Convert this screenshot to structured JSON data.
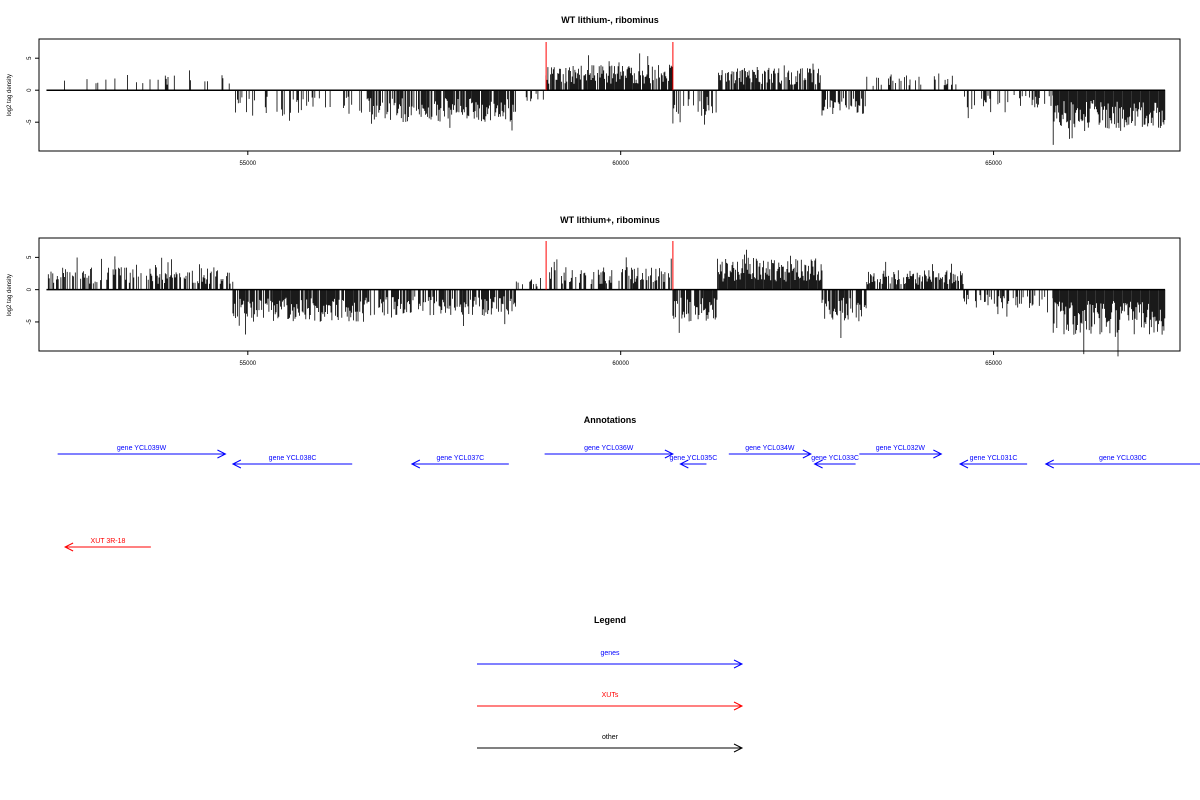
{
  "colors": {
    "bars": "#000000",
    "marker": "#ff0000",
    "gene": "#0000ff",
    "xut": "#ff0000",
    "other": "#000000"
  },
  "chart_data": [
    {
      "type": "bar",
      "title": "WT lithium-, ribominus",
      "ylabel": "log2 tag density",
      "xlim": [
        52200,
        67500
      ],
      "ylim": [
        -9.5,
        8
      ],
      "xticks": [
        "55000",
        "60000",
        "65000"
      ],
      "yticks": [
        "5",
        "0",
        "-5"
      ],
      "markers": [
        59000,
        60700
      ],
      "density_profile": [
        {
          "start": 52300,
          "end": 54800,
          "max": 2.5,
          "fill": 0.15
        },
        {
          "start": 54800,
          "end": 56600,
          "max": -4.0,
          "fill": 0.35
        },
        {
          "start": 56600,
          "end": 58600,
          "max": -5.0,
          "fill": 0.8
        },
        {
          "start": 58600,
          "end": 59000,
          "max": -2.0,
          "fill": 0.2
        },
        {
          "start": 59000,
          "end": 60700,
          "max": 4.0,
          "fill": 0.9
        },
        {
          "start": 60700,
          "end": 61300,
          "max": -4.0,
          "fill": 0.6
        },
        {
          "start": 61300,
          "end": 62700,
          "max": 3.5,
          "fill": 0.75
        },
        {
          "start": 62700,
          "end": 63300,
          "max": -4.0,
          "fill": 0.7
        },
        {
          "start": 63300,
          "end": 64600,
          "max": 2.5,
          "fill": 0.3
        },
        {
          "start": 64600,
          "end": 65800,
          "max": -3.0,
          "fill": 0.4
        },
        {
          "start": 65800,
          "end": 67300,
          "max": -6.0,
          "fill": 1.0
        }
      ]
    },
    {
      "type": "bar",
      "title": "WT lithium+, ribominus",
      "ylabel": "log2 tag density",
      "xlim": [
        52200,
        67500
      ],
      "ylim": [
        -9.5,
        8
      ],
      "xticks": [
        "55000",
        "60000",
        "65000"
      ],
      "yticks": [
        "5",
        "0",
        "-5"
      ],
      "markers": [
        59000,
        60700
      ],
      "density_profile": [
        {
          "start": 52300,
          "end": 54800,
          "max": 3.5,
          "fill": 0.6
        },
        {
          "start": 54800,
          "end": 56600,
          "max": -5.0,
          "fill": 0.9
        },
        {
          "start": 56600,
          "end": 58600,
          "max": -4.0,
          "fill": 0.7
        },
        {
          "start": 58600,
          "end": 59000,
          "max": 2.0,
          "fill": 0.2
        },
        {
          "start": 59000,
          "end": 60700,
          "max": 3.5,
          "fill": 0.6
        },
        {
          "start": 60700,
          "end": 61300,
          "max": -5.0,
          "fill": 0.9
        },
        {
          "start": 61300,
          "end": 62700,
          "max": 5.0,
          "fill": 1.0
        },
        {
          "start": 62700,
          "end": 63300,
          "max": -5.0,
          "fill": 0.8
        },
        {
          "start": 63300,
          "end": 64600,
          "max": 3.0,
          "fill": 0.8
        },
        {
          "start": 64600,
          "end": 65800,
          "max": -3.0,
          "fill": 0.5
        },
        {
          "start": 65800,
          "end": 67300,
          "max": -7.0,
          "fill": 1.0
        }
      ]
    }
  ],
  "annotations": {
    "title": "Annotations",
    "items": [
      {
        "label": "gene YCL039W",
        "start": 52450,
        "end": 54700,
        "dir": "right",
        "kind": "gene",
        "row": 0
      },
      {
        "label": "gene YCL038C",
        "start": 54800,
        "end": 56400,
        "dir": "left",
        "kind": "gene",
        "row": 1
      },
      {
        "label": "gene YCL037C",
        "start": 57200,
        "end": 58500,
        "dir": "left",
        "kind": "gene",
        "row": 1
      },
      {
        "label": "gene YCL036W",
        "start": 58980,
        "end": 60700,
        "dir": "right",
        "kind": "gene",
        "row": 0
      },
      {
        "label": "gene YCL035C",
        "start": 60800,
        "end": 61150,
        "dir": "left",
        "kind": "gene",
        "row": 1
      },
      {
        "label": "gene YCL034W",
        "start": 61450,
        "end": 62550,
        "dir": "right",
        "kind": "gene",
        "row": 0
      },
      {
        "label": "gene YCL033C",
        "start": 62600,
        "end": 63150,
        "dir": "left",
        "kind": "gene",
        "row": 1
      },
      {
        "label": "gene YCL032W",
        "start": 63200,
        "end": 64300,
        "dir": "right",
        "kind": "gene",
        "row": 0
      },
      {
        "label": "gene YCL031C",
        "start": 64550,
        "end": 65450,
        "dir": "left",
        "kind": "gene",
        "row": 1
      },
      {
        "label": "gene YCL030C",
        "start": 65700,
        "end": 67800,
        "dir": "left",
        "kind": "gene",
        "row": 1
      },
      {
        "label": "XUT 3R-18",
        "start": 52550,
        "end": 53700,
        "dir": "left",
        "kind": "xut",
        "row": 2
      }
    ]
  },
  "legend": {
    "title": "Legend",
    "items": [
      {
        "label": "genes",
        "kind": "gene"
      },
      {
        "label": "XUTs",
        "kind": "xut"
      },
      {
        "label": "other",
        "kind": "other"
      }
    ]
  }
}
